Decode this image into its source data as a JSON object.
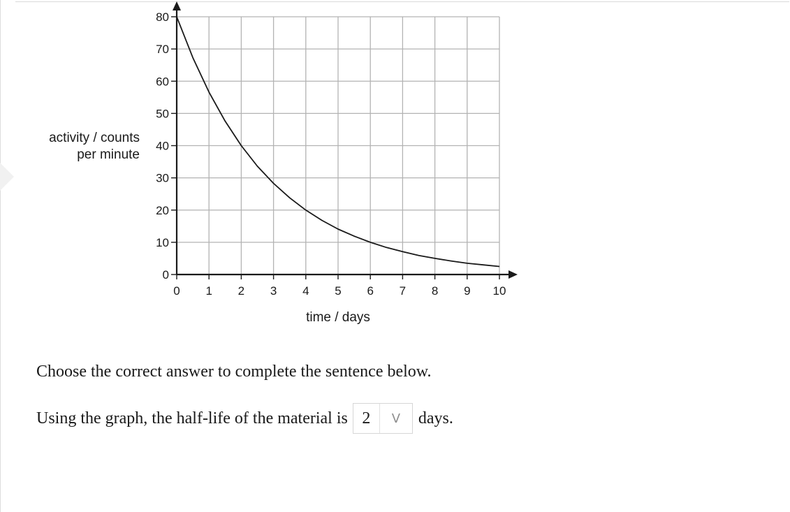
{
  "chart_data": {
    "type": "line",
    "xlabel": "time / days",
    "ylabel_lines": [
      "activity / counts",
      "per minute"
    ],
    "xlim": [
      0,
      10
    ],
    "ylim": [
      0,
      80
    ],
    "x_ticks": [
      "0",
      "1",
      "2",
      "3",
      "4",
      "5",
      "6",
      "7",
      "8",
      "9",
      "10"
    ],
    "y_ticks": [
      "0",
      "10",
      "20",
      "30",
      "40",
      "50",
      "60",
      "70",
      "80"
    ],
    "grid": true,
    "series": [
      {
        "x": [
          0,
          0.5,
          1,
          1.5,
          2,
          2.5,
          3,
          3.5,
          4,
          4.5,
          5,
          5.5,
          6,
          6.5,
          7,
          7.5,
          8,
          8.5,
          9,
          9.5,
          10
        ],
        "y": [
          80,
          67.3,
          56.6,
          47.6,
          40,
          33.6,
          28.3,
          23.8,
          20,
          16.8,
          14.1,
          11.9,
          10,
          8.4,
          7.1,
          5.9,
          5,
          4.2,
          3.5,
          3,
          2.5
        ]
      }
    ],
    "line_color": "#1a1a1a",
    "grid_color": "#b3b3b3"
  },
  "question": {
    "prompt": "Choose the correct answer to complete the sentence below.",
    "sentence_before": "Using the graph, the half-life of the material is",
    "selected_value": "2",
    "chevron_glyph": "V",
    "sentence_after": "days."
  }
}
